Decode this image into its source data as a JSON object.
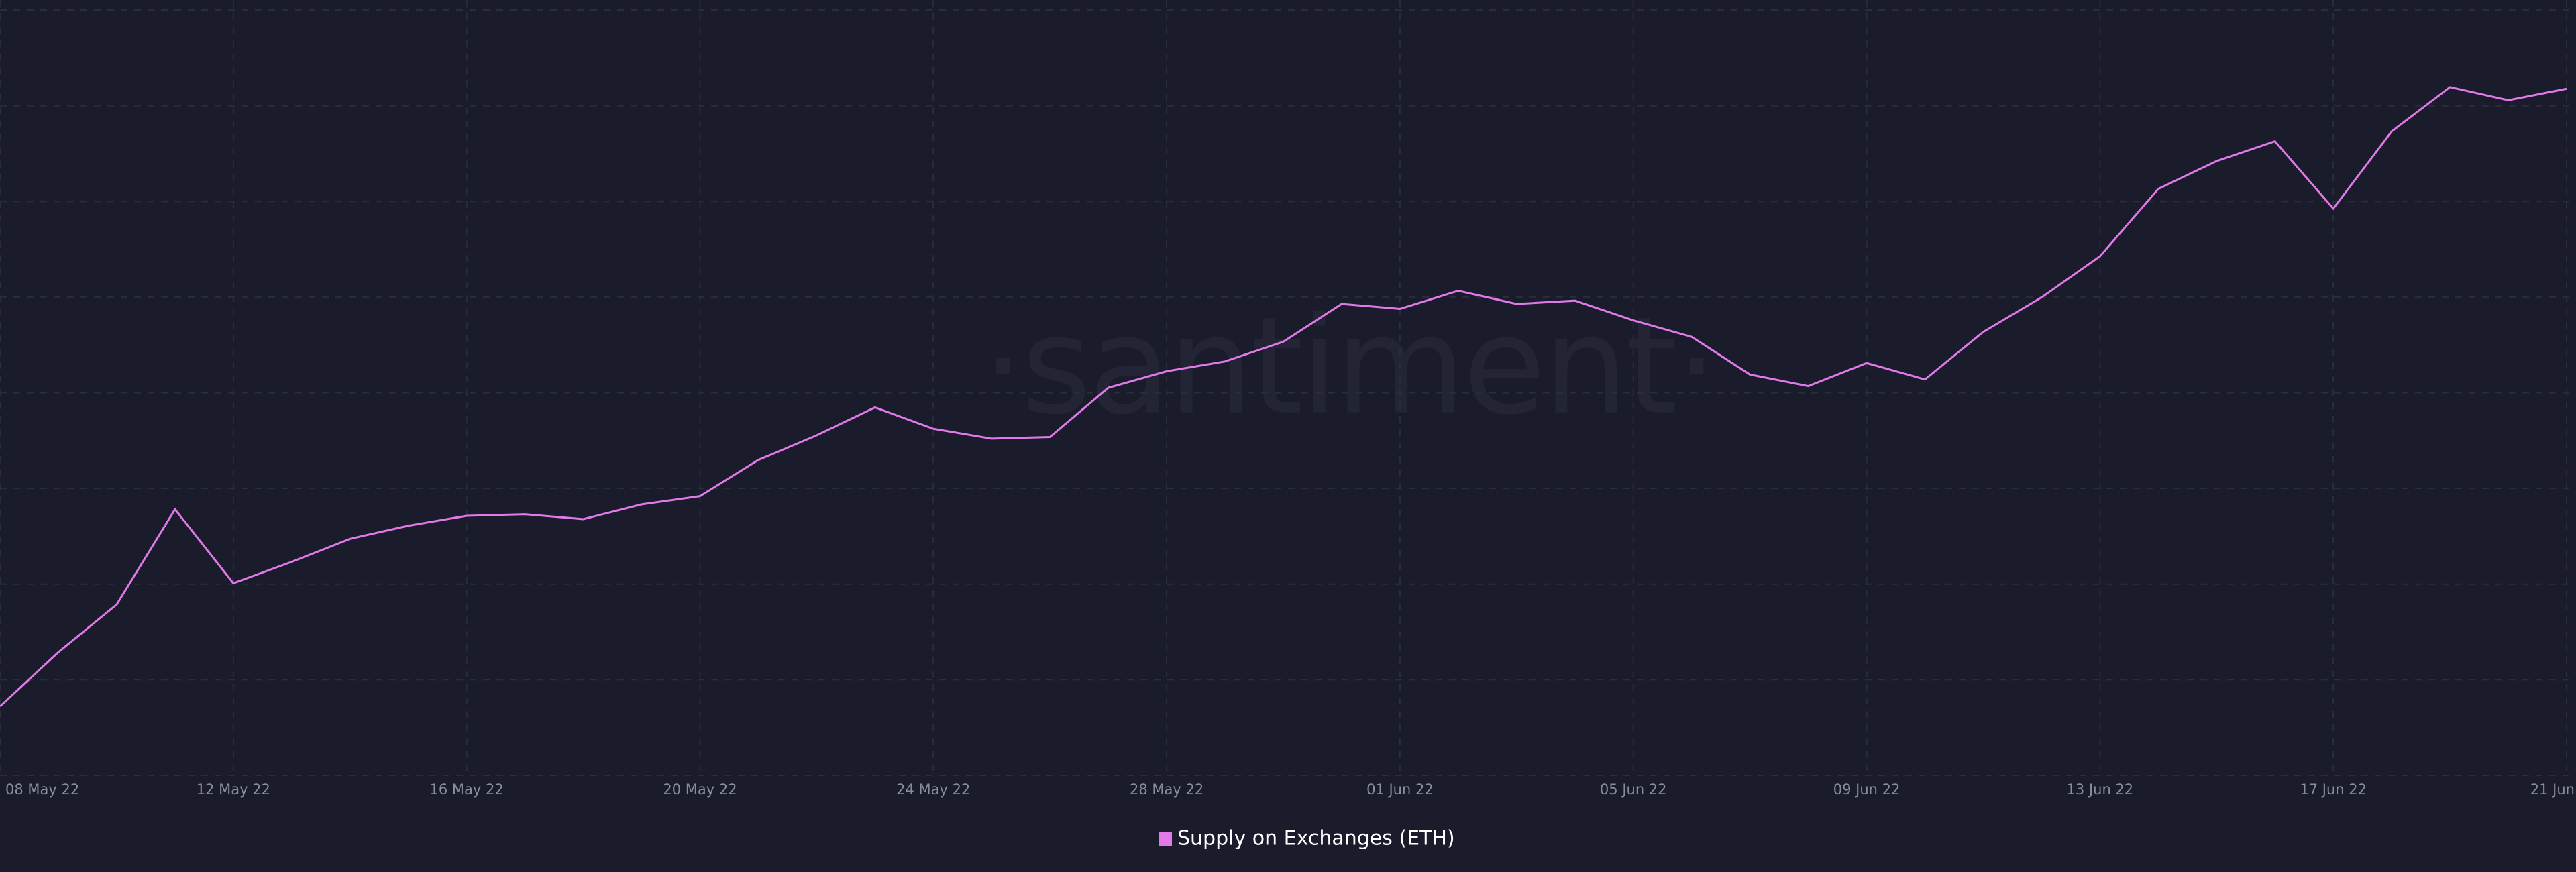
{
  "chart_data": {
    "type": "line",
    "watermark": "·santiment·",
    "categories": [
      "08 May 22",
      null,
      null,
      null,
      "12 May 22",
      null,
      null,
      null,
      "16 May 22",
      null,
      null,
      null,
      "20 May 22",
      null,
      null,
      null,
      "24 May 22",
      null,
      null,
      null,
      "28 May 22",
      null,
      null,
      null,
      "01 Jun 22",
      null,
      null,
      null,
      "05 Jun 22",
      null,
      null,
      null,
      "09 Jun 22",
      null,
      null,
      null,
      "13 Jun 22",
      null,
      null,
      null,
      "17 Jun 22",
      null,
      null,
      null,
      "21 Jun"
    ],
    "series": [
      {
        "name": "Supply on Exchanges (ETH)",
        "color": "#e07ae8",
        "values": [
          4.2,
          7.5,
          10.4,
          16.2,
          11.7,
          13.0,
          14.4,
          15.2,
          15.8,
          15.9,
          15.6,
          16.5,
          17.0,
          19.2,
          20.7,
          22.4,
          21.1,
          20.5,
          20.6,
          23.6,
          24.6,
          25.2,
          26.4,
          28.7,
          28.4,
          29.5,
          28.7,
          28.9,
          27.7,
          26.7,
          24.4,
          23.7,
          25.1,
          24.1,
          27.0,
          29.1,
          31.6,
          35.7,
          37.4,
          38.6,
          34.5,
          39.2,
          41.9,
          41.1,
          41.8
        ]
      }
    ],
    "ylim": [
      0,
      47.2
    ],
    "grid": true
  }
}
